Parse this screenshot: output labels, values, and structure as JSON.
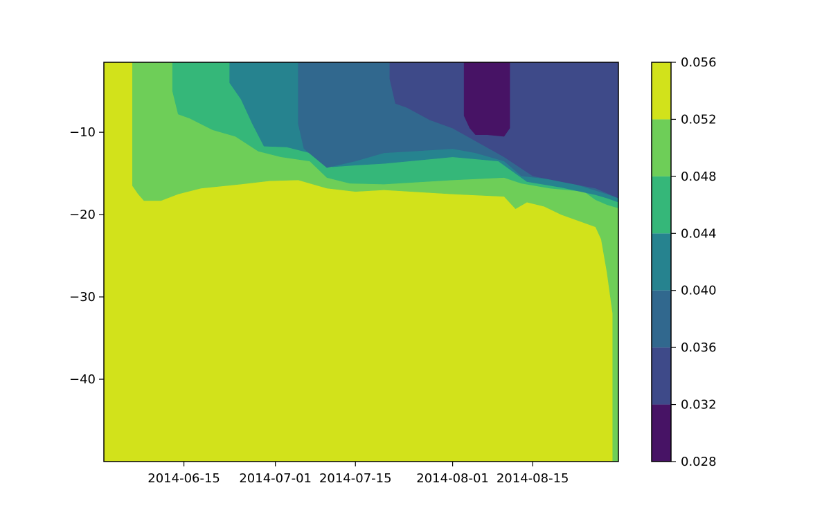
{
  "chart_data": {
    "type": "contourf",
    "title": "",
    "xlabel": "",
    "ylabel": "",
    "x_axis": {
      "type": "date",
      "range": [
        "2014-06-01",
        "2014-08-30"
      ],
      "ticks": [
        "2014-06-15",
        "2014-07-01",
        "2014-07-15",
        "2014-08-01",
        "2014-08-15"
      ]
    },
    "y_axis": {
      "range": [
        -50,
        -1.5
      ],
      "ticks": [
        -10,
        -20,
        -30,
        -40
      ],
      "tick_labels": [
        "−10",
        "−20",
        "−30",
        "−40"
      ]
    },
    "colorbar": {
      "levels": [
        0.028,
        0.032,
        0.036,
        0.04,
        0.044,
        0.048,
        0.052,
        0.056
      ],
      "tick_labels": [
        "0.028",
        "0.032",
        "0.036",
        "0.040",
        "0.044",
        "0.048",
        "0.052",
        "0.056"
      ],
      "colors": [
        "#471365",
        "#3e4a89",
        "#31688e",
        "#26838f",
        "#35b779",
        "#6ece58",
        "#d2e21b"
      ]
    },
    "regions": [
      {
        "band": 6,
        "points": [
          [
            "2014-06-01",
            -1.5
          ],
          [
            "2014-08-30",
            -1.5
          ],
          [
            "2014-08-30",
            -50
          ],
          [
            "2014-06-01",
            -50
          ]
        ]
      },
      {
        "band": 5,
        "points": [
          [
            "2014-06-06",
            -1.5
          ],
          [
            "2014-08-30",
            -1.5
          ],
          [
            "2014-08-30",
            -50
          ],
          [
            "2014-08-29",
            -50
          ],
          [
            "2014-08-29",
            -32
          ],
          [
            "2014-08-28",
            -27
          ],
          [
            "2014-08-27",
            -23
          ],
          [
            "2014-08-26",
            -21.5
          ],
          [
            "2014-08-20",
            -20
          ],
          [
            "2014-08-17",
            -19
          ],
          [
            "2014-08-14",
            -18.5
          ],
          [
            "2014-08-12",
            -19.3
          ],
          [
            "2014-08-10",
            -17.8
          ],
          [
            "2014-08-01",
            -17.5
          ],
          [
            "2014-07-20",
            -17
          ],
          [
            "2014-07-15",
            -17.2
          ],
          [
            "2014-07-10",
            -16.8
          ],
          [
            "2014-07-05",
            -15.8
          ],
          [
            "2014-06-30",
            -15.9
          ],
          [
            "2014-06-25",
            -16.3
          ],
          [
            "2014-06-18",
            -16.8
          ],
          [
            "2014-06-14",
            -17.5
          ],
          [
            "2014-06-11",
            -18.3
          ],
          [
            "2014-06-08",
            -18.3
          ],
          [
            "2014-06-07",
            -17.5
          ],
          [
            "2014-06-06",
            -16.5
          ]
        ]
      },
      {
        "band": 4,
        "points": [
          [
            "2014-06-13",
            -1.5
          ],
          [
            "2014-08-30",
            -1.5
          ],
          [
            "2014-08-30",
            -19.2
          ],
          [
            "2014-08-28",
            -18.8
          ],
          [
            "2014-08-26",
            -18.2
          ],
          [
            "2014-08-24",
            -17.2
          ],
          [
            "2014-08-18",
            -16.8
          ],
          [
            "2014-08-13",
            -16.2
          ],
          [
            "2014-08-10",
            -15.5
          ],
          [
            "2014-08-01",
            -15.8
          ],
          [
            "2014-07-20",
            -16.3
          ],
          [
            "2014-07-14",
            -16.2
          ],
          [
            "2014-07-10",
            -15.5
          ],
          [
            "2014-07-07",
            -13.5
          ],
          [
            "2014-07-02",
            -13.0
          ],
          [
            "2014-06-28",
            -12.3
          ],
          [
            "2014-06-24",
            -10.5
          ],
          [
            "2014-06-20",
            -9.7
          ],
          [
            "2014-06-16",
            -8.3
          ],
          [
            "2014-06-14",
            -7.8
          ],
          [
            "2014-06-13",
            -5
          ]
        ]
      },
      {
        "band": 3,
        "points": [
          [
            "2014-06-23",
            -1.5
          ],
          [
            "2014-08-30",
            -1.5
          ],
          [
            "2014-08-30",
            -18.5
          ],
          [
            "2014-08-28",
            -18
          ],
          [
            "2014-08-26",
            -17.6
          ],
          [
            "2014-08-20",
            -16.7
          ],
          [
            "2014-08-14",
            -16.0
          ],
          [
            "2014-08-11",
            -14.5
          ],
          [
            "2014-08-09",
            -13.5
          ],
          [
            "2014-08-01",
            -13.0
          ],
          [
            "2014-07-20",
            -13.8
          ],
          [
            "2014-07-15",
            -14.0
          ],
          [
            "2014-07-11",
            -14.2
          ],
          [
            "2014-07-07",
            -12.5
          ],
          [
            "2014-07-03",
            -11.8
          ],
          [
            "2014-06-29",
            -11.7
          ],
          [
            "2014-06-27",
            -9.0
          ],
          [
            "2014-06-25",
            -6
          ],
          [
            "2014-06-23",
            -4
          ]
        ]
      },
      {
        "band": 2,
        "points": [
          [
            "2014-07-05",
            -1.5
          ],
          [
            "2014-08-30",
            -1.5
          ],
          [
            "2014-08-30",
            -18
          ],
          [
            "2014-08-28",
            -17.5
          ],
          [
            "2014-08-22",
            -16.2
          ],
          [
            "2014-08-18",
            -15.7
          ],
          [
            "2014-08-13",
            -15.3
          ],
          [
            "2014-08-10",
            -13.5
          ],
          [
            "2014-08-05",
            -12.5
          ],
          [
            "2014-08-01",
            -12.0
          ],
          [
            "2014-07-25",
            -12.3
          ],
          [
            "2014-07-20",
            -12.5
          ],
          [
            "2014-07-15",
            -13.5
          ],
          [
            "2014-07-10",
            -14.3
          ],
          [
            "2014-07-06",
            -12.0
          ],
          [
            "2014-07-05",
            -9.0
          ]
        ]
      },
      {
        "band": 1,
        "points": [
          [
            "2014-07-21",
            -1.5
          ],
          [
            "2014-08-30",
            -1.5
          ],
          [
            "2014-08-30",
            -18
          ],
          [
            "2014-08-26",
            -16.8
          ],
          [
            "2014-08-20",
            -16.0
          ],
          [
            "2014-08-15",
            -15.3
          ],
          [
            "2014-08-10",
            -13.0
          ],
          [
            "2014-08-01",
            -9.5
          ],
          [
            "2014-07-28",
            -8.5
          ],
          [
            "2014-07-24",
            -7.0
          ],
          [
            "2014-07-22",
            -6.5
          ],
          [
            "2014-07-21",
            -3.5
          ]
        ]
      },
      {
        "band": 0,
        "points": [
          [
            "2014-08-03",
            -1.5
          ],
          [
            "2014-08-11",
            -1.5
          ],
          [
            "2014-08-11",
            -9.5
          ],
          [
            "2014-08-10",
            -10.5
          ],
          [
            "2014-08-07",
            -10.3
          ],
          [
            "2014-08-05",
            -10.3
          ],
          [
            "2014-08-04",
            -9.5
          ],
          [
            "2014-08-03",
            -8.0
          ]
        ]
      }
    ]
  }
}
